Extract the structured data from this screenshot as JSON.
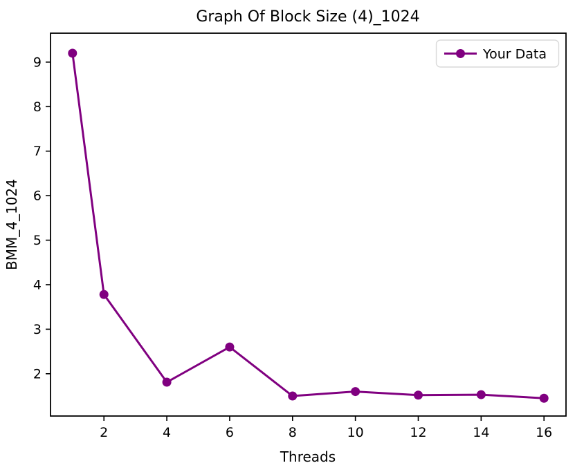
{
  "figure": {
    "title": "Graph Of Block Size (4)_1024",
    "xlabel": "Threads",
    "ylabel": "BMM_4_1024",
    "legend": {
      "label": "Your Data",
      "position": "upper right"
    },
    "colors": {
      "series": "#800080",
      "axis": "#000000",
      "background": "#ffffff",
      "legend_border": "#d9d9d9"
    }
  },
  "chart_data": {
    "type": "line",
    "title": "Graph Of Block Size (4)_1024",
    "xlabel": "Threads",
    "ylabel": "BMM_4_1024",
    "series": [
      {
        "name": "Your Data",
        "x": [
          1,
          2,
          4,
          6,
          8,
          10,
          12,
          14,
          16
        ],
        "y": [
          9.2,
          3.78,
          1.81,
          2.6,
          1.5,
          1.6,
          1.52,
          1.53,
          1.45
        ],
        "color": "#800080",
        "marker": "circle",
        "line_width": 3,
        "marker_radius": 6.5
      }
    ],
    "xticks": [
      2,
      4,
      6,
      8,
      10,
      12,
      14,
      16
    ],
    "yticks": [
      2,
      3,
      4,
      5,
      6,
      7,
      8,
      9
    ],
    "xlim": [
      0.3,
      16.7
    ],
    "ylim": [
      1.05,
      9.65
    ],
    "grid": false,
    "legend_position": "upper right",
    "background": "#ffffff"
  }
}
